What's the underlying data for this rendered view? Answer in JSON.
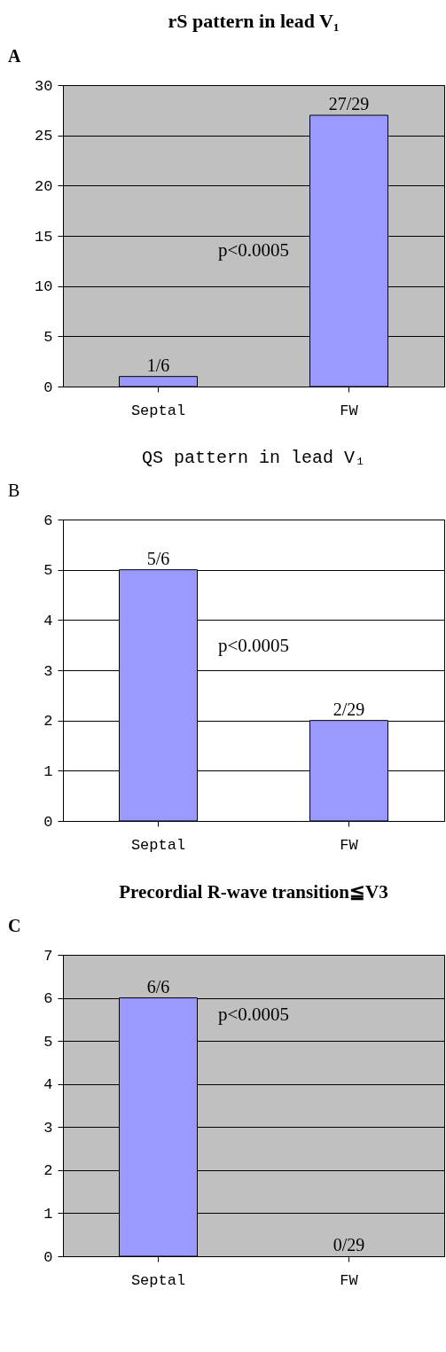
{
  "chart_data": [
    {
      "type": "bar",
      "title": "rS pattern in lead V₁",
      "categories": [
        "Septal",
        "FW"
      ],
      "values": [
        1,
        27
      ],
      "color": "#9999ff",
      "ylim": [
        0,
        30
      ],
      "yticks": [
        0,
        5,
        10,
        15,
        20,
        25,
        30
      ],
      "grid": "y",
      "annotations": [
        "A",
        "p<0.0005",
        {
          "text": "1/6",
          "x": "Septal",
          "y": 1
        },
        {
          "text": "27/29",
          "x": "FW",
          "y": 27
        }
      ]
    },
    {
      "type": "bar",
      "title": "QS pattern in lead V₁",
      "categories": [
        "Septal",
        "FW"
      ],
      "values": [
        5,
        2
      ],
      "color": "#9999ff",
      "ylim": [
        0,
        6
      ],
      "yticks": [
        0,
        1,
        2,
        3,
        4,
        5,
        6
      ],
      "grid": "y",
      "annotations": [
        "B",
        "p<0.0005",
        {
          "text": "5/6",
          "x": "Septal",
          "y": 5
        },
        {
          "text": "2/29",
          "x": "FW",
          "y": 2
        }
      ]
    },
    {
      "type": "bar",
      "title": "Precordial R-wave transition≦V3",
      "categories": [
        "Septal",
        "FW"
      ],
      "values": [
        6,
        0
      ],
      "color": "#9999ff",
      "ylim": [
        0,
        7
      ],
      "yticks": [
        0,
        1,
        2,
        3,
        4,
        5,
        6,
        7
      ],
      "grid": "y",
      "annotations": [
        "C",
        "p<0.0005",
        {
          "text": "6/6",
          "x": "Septal",
          "y": 6
        },
        {
          "text": "0/29",
          "x": "FW",
          "y": 0
        }
      ]
    }
  ]
}
